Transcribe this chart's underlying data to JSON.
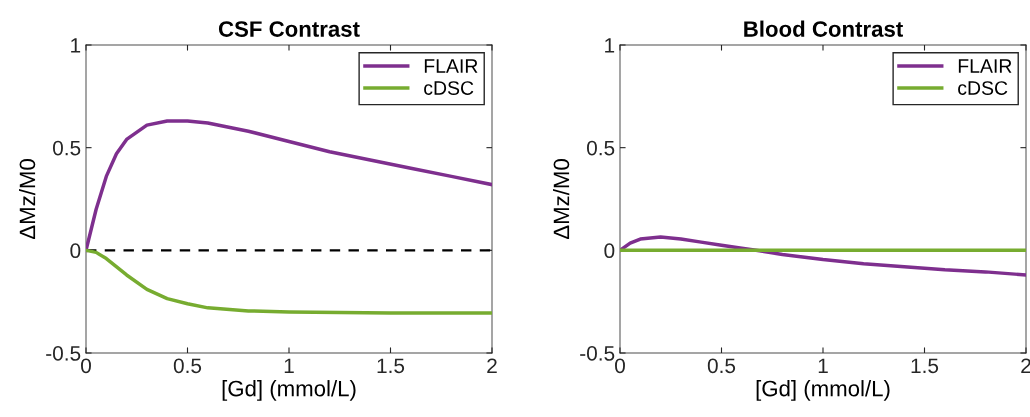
{
  "chart_data": [
    {
      "type": "line",
      "title": "CSF Contrast",
      "xlabel": "[Gd] (mmol/L)",
      "ylabel": "ΔMz/M0",
      "xlim": [
        0,
        2
      ],
      "ylim": [
        -0.5,
        1
      ],
      "xticks": [
        0,
        0.5,
        1,
        1.5,
        2
      ],
      "yticks": [
        -0.5,
        0,
        0.5,
        1
      ],
      "grid": false,
      "legend": "top right",
      "ref_lines": [
        {
          "axis": "y",
          "value": 0,
          "color": "#000000",
          "line_style": "dashed"
        }
      ],
      "series": [
        {
          "name": "FLAIR",
          "color": "#7e2f8e",
          "x": [
            0,
            0.05,
            0.1,
            0.15,
            0.2,
            0.3,
            0.4,
            0.5,
            0.6,
            0.8,
            1.0,
            1.2,
            1.4,
            1.6,
            1.8,
            2.0
          ],
          "values": [
            0,
            0.2,
            0.36,
            0.47,
            0.54,
            0.61,
            0.63,
            0.63,
            0.62,
            0.58,
            0.53,
            0.48,
            0.44,
            0.4,
            0.36,
            0.32
          ]
        },
        {
          "name": "cDSC",
          "color": "#77ac30",
          "x": [
            0,
            0.05,
            0.1,
            0.2,
            0.3,
            0.4,
            0.5,
            0.6,
            0.8,
            1.0,
            1.5,
            2.0
          ],
          "values": [
            0,
            -0.01,
            -0.04,
            -0.12,
            -0.19,
            -0.235,
            -0.26,
            -0.28,
            -0.295,
            -0.3,
            -0.305,
            -0.305
          ]
        }
      ]
    },
    {
      "type": "line",
      "title": "Blood Contrast",
      "xlabel": "[Gd] (mmol/L)",
      "ylabel": "ΔMz/M0",
      "xlim": [
        0,
        2
      ],
      "ylim": [
        -0.5,
        1
      ],
      "xticks": [
        0,
        0.5,
        1,
        1.5,
        2
      ],
      "yticks": [
        -0.5,
        0,
        0.5,
        1
      ],
      "grid": false,
      "legend": "top right",
      "series": [
        {
          "name": "FLAIR",
          "color": "#7e2f8e",
          "x": [
            0,
            0.05,
            0.1,
            0.2,
            0.3,
            0.4,
            0.5,
            0.6,
            0.67,
            0.8,
            1.0,
            1.2,
            1.4,
            1.6,
            1.8,
            2.0
          ],
          "values": [
            0,
            0.035,
            0.055,
            0.065,
            0.055,
            0.04,
            0.025,
            0.01,
            0,
            -0.02,
            -0.045,
            -0.065,
            -0.08,
            -0.095,
            -0.105,
            -0.12
          ]
        },
        {
          "name": "cDSC",
          "color": "#77ac30",
          "x": [
            0,
            2
          ],
          "values": [
            0,
            0
          ]
        }
      ]
    }
  ]
}
